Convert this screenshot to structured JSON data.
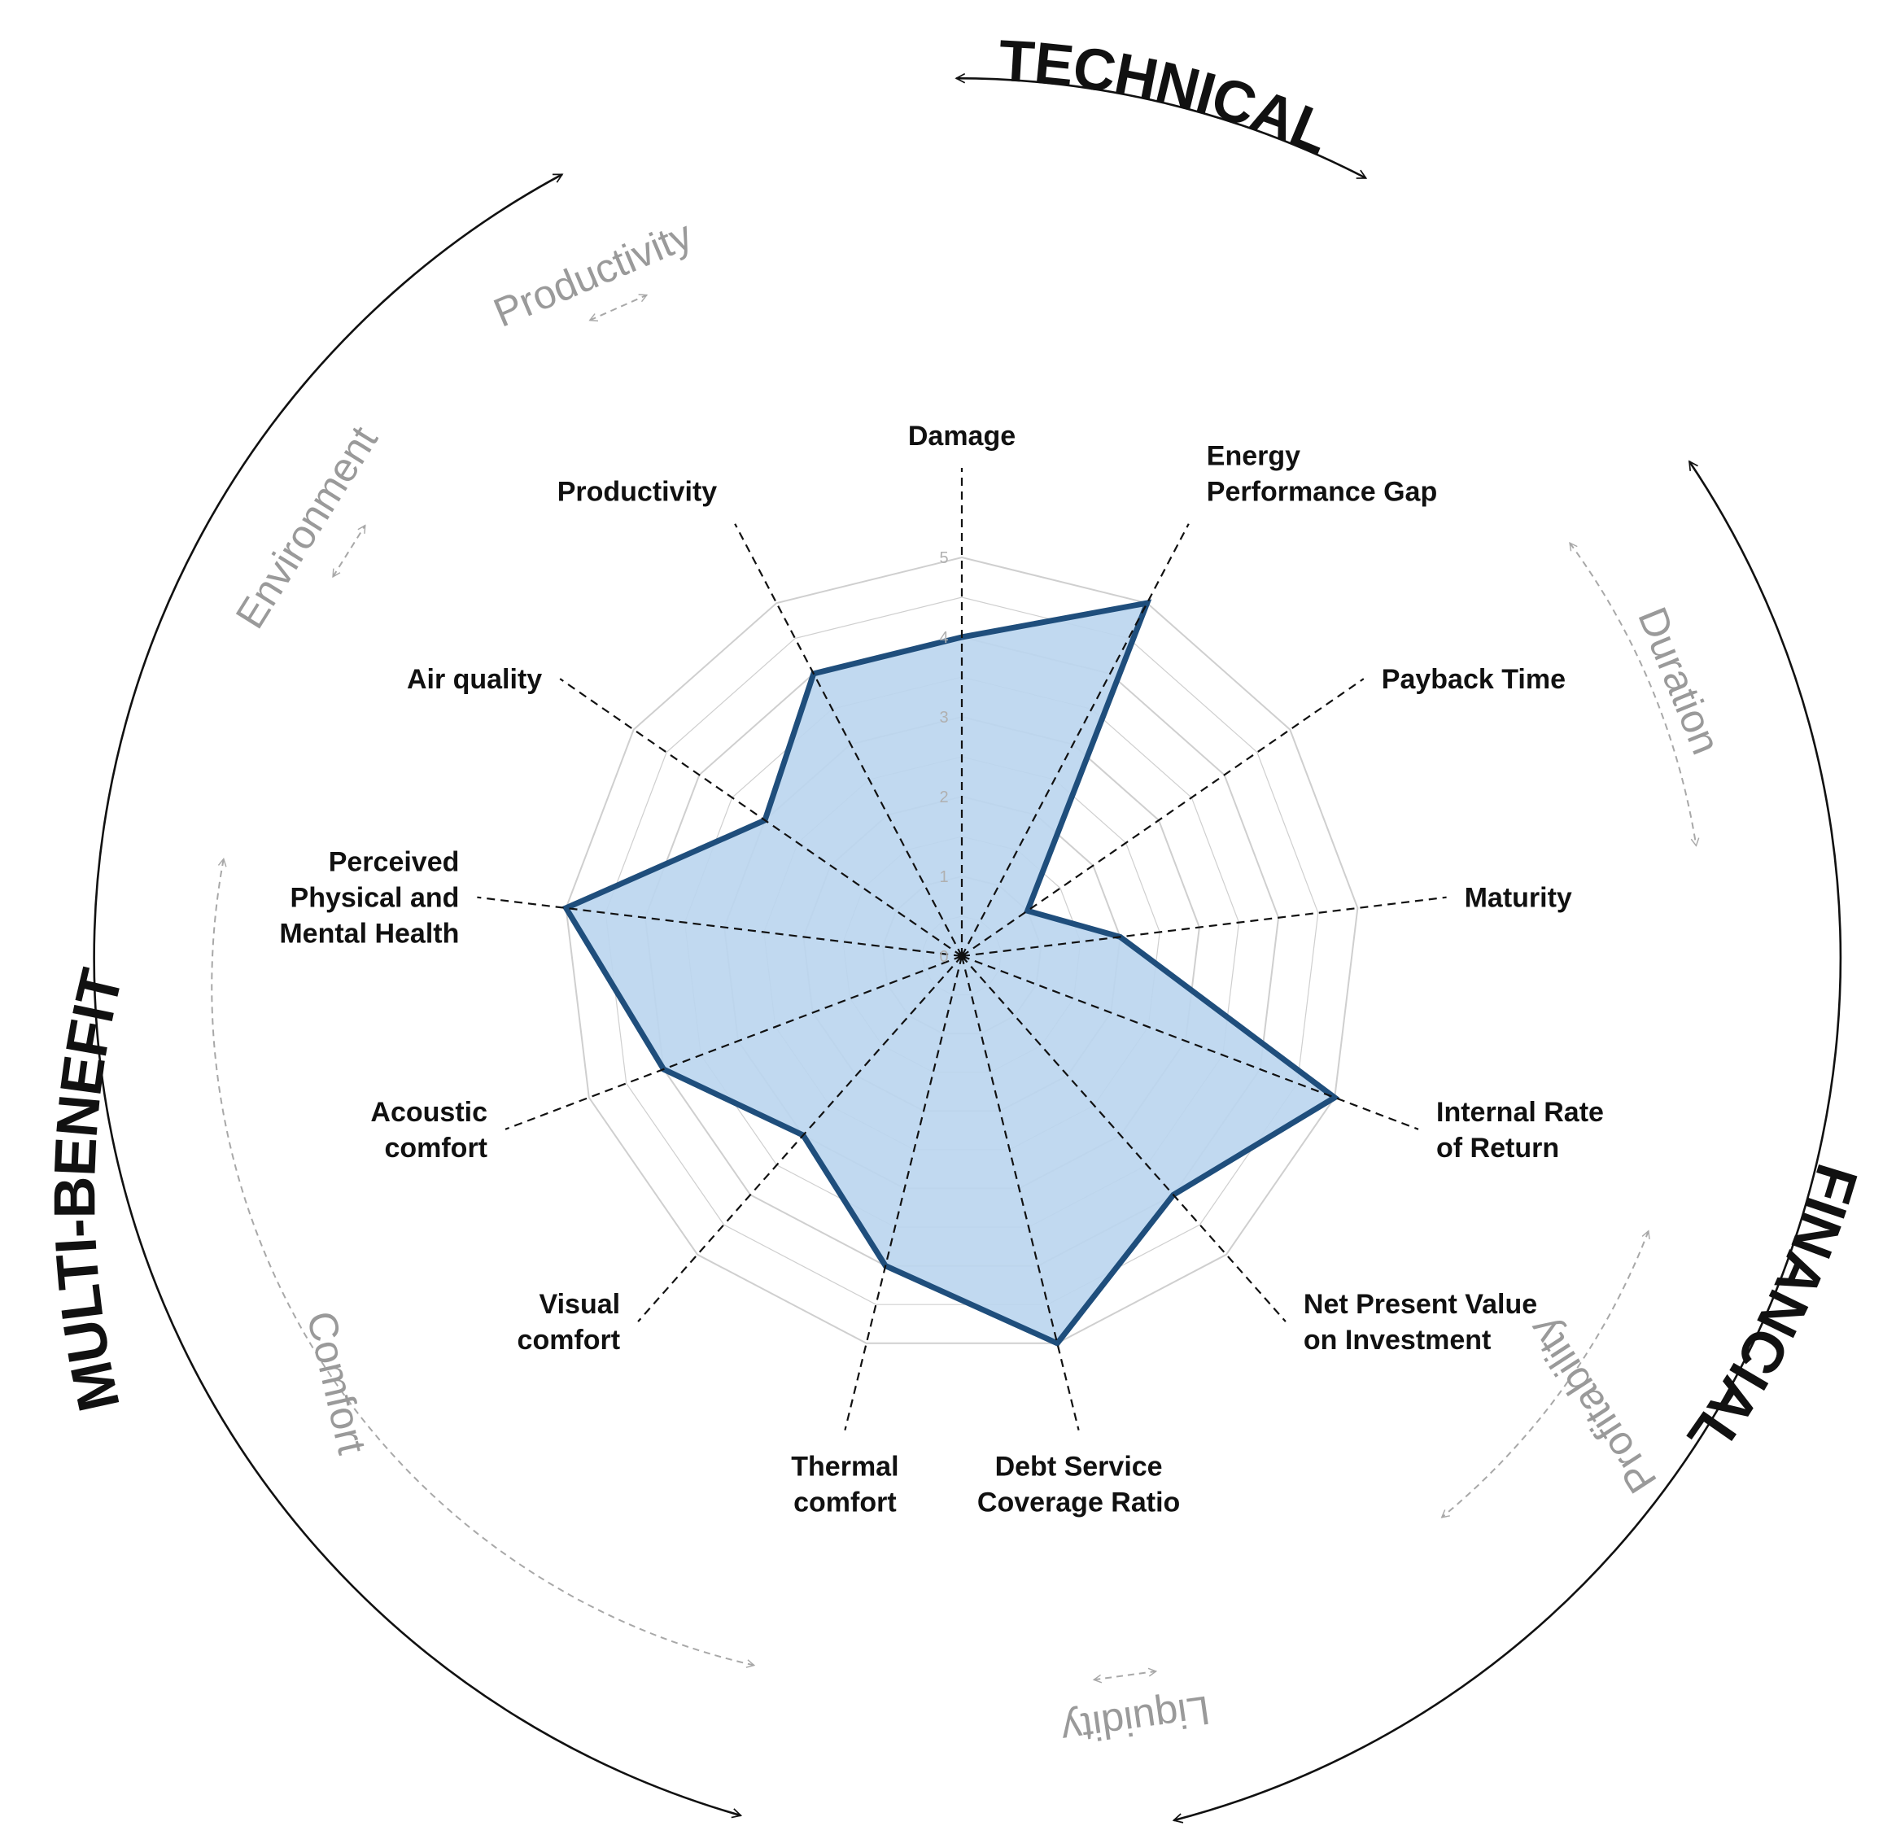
{
  "chart_data": {
    "type": "radar",
    "axes": [
      "Damage",
      "Energy Performance Gap",
      "Payback Time",
      "Maturity",
      "Internal Rate of Return",
      "Net Present Value on Investment",
      "Debt Service Coverage Ratio",
      "Thermal comfort",
      "Visual comfort",
      "Acoustic comfort",
      "Perceived Physical and Mental Health",
      "Air quality",
      "Productivity"
    ],
    "axis_label_lines": [
      [
        "Damage"
      ],
      [
        "Energy",
        "Performance Gap"
      ],
      [
        "Payback Time"
      ],
      [
        "Maturity"
      ],
      [
        "Internal Rate",
        "of Return"
      ],
      [
        "Net Present Value",
        "on Investment"
      ],
      [
        "Debt Service",
        "Coverage Ratio"
      ],
      [
        "Thermal",
        "comfort"
      ],
      [
        "Visual",
        "comfort"
      ],
      [
        "Acoustic",
        "comfort"
      ],
      [
        "Perceived",
        "Physical and",
        "Mental Health"
      ],
      [
        "Air quality"
      ],
      [
        "Productivity"
      ]
    ],
    "series": [
      {
        "values": [
          4,
          5,
          1,
          2,
          5,
          4,
          5,
          4,
          3,
          4,
          5,
          3,
          4
        ]
      }
    ],
    "range": [
      0,
      5
    ],
    "ticks": [
      "0",
      "1",
      "2",
      "3",
      "4",
      "5"
    ],
    "grid": true
  },
  "categories": [
    {
      "label": "TECHNICAL"
    },
    {
      "label": "FINANCIAL"
    },
    {
      "label": "MULTI-BENEFIT"
    }
  ],
  "subcategories": [
    {
      "label": "Productivity"
    },
    {
      "label": "Environment"
    },
    {
      "label": "Duration"
    },
    {
      "label": "Profitability"
    },
    {
      "label": "Liquidity"
    },
    {
      "label": "Comfort"
    }
  ],
  "colors": {
    "fill": "#bcd6ef",
    "stroke": "#1f4e7c",
    "grid": "#cfcfcf",
    "spoke": "#111111",
    "category": "#111111",
    "subcategory": "#9a9a9a"
  }
}
